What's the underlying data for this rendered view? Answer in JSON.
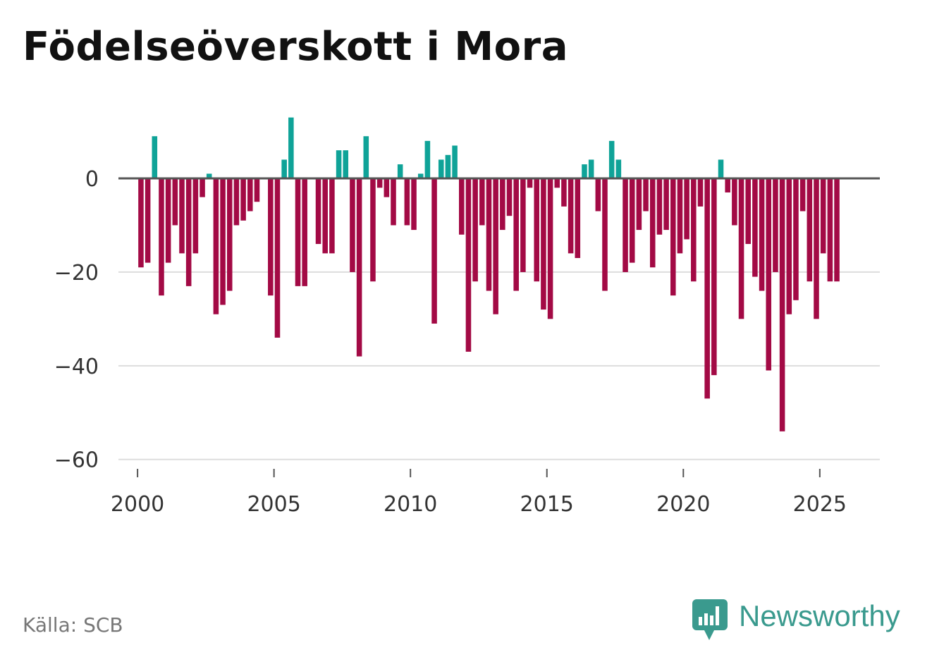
{
  "title": "Födelseöverskott i Mora",
  "source": "Källa: SCB",
  "brand": {
    "name": "Newsworthy",
    "logo_icon": "bar-chart-speech-bubble-icon"
  },
  "colors": {
    "positive": "#0fa398",
    "negative": "#a30a45",
    "zero_line": "#555555",
    "grid": "#dddddd",
    "brand": "#3a9a8e"
  },
  "chart_data": {
    "type": "bar",
    "title": "Födelseöverskott i Mora",
    "xlabel": "",
    "ylabel": "",
    "ylim": [
      -62,
      14
    ],
    "xlim": [
      1999.3,
      2027.2
    ],
    "y_ticks": [
      0,
      -20,
      -40,
      -60
    ],
    "y_tick_labels": [
      "0",
      "−20",
      "−40",
      "−60"
    ],
    "x_ticks": [
      2000,
      2005,
      2010,
      2015,
      2020,
      2025
    ],
    "x_tick_labels": [
      "2000",
      "2005",
      "2010",
      "2015",
      "2020",
      "2025"
    ],
    "grid": true,
    "frequency": "quarterly",
    "start_year": 2000,
    "series": [
      {
        "name": "Födelseöverskott",
        "values": [
          -19,
          -18,
          9,
          -25,
          -18,
          -10,
          -16,
          -23,
          -16,
          -4,
          1,
          -29,
          -27,
          -24,
          -10,
          -9,
          -7,
          -5,
          0,
          -25,
          -34,
          4,
          13,
          -23,
          -23,
          0,
          -14,
          -16,
          -16,
          6,
          6,
          -20,
          -38,
          9,
          -22,
          -2,
          -4,
          -10,
          3,
          -10,
          -11,
          1,
          8,
          -31,
          4,
          5,
          7,
          -12,
          -37,
          -22,
          -10,
          -24,
          -29,
          -11,
          -8,
          -24,
          -20,
          -2,
          -22,
          -28,
          -30,
          -2,
          -6,
          -16,
          -17,
          3,
          4,
          -7,
          -24,
          8,
          4,
          -20,
          -18,
          -11,
          -7,
          -19,
          -12,
          -11,
          -25,
          -16,
          -13,
          -22,
          -6,
          -47,
          -42,
          4,
          -3,
          -10,
          -30,
          -14,
          -21,
          -24,
          -41,
          -20,
          -54,
          -29,
          -26,
          -7,
          -22,
          -30,
          -16,
          -22,
          -22
        ]
      }
    ]
  }
}
